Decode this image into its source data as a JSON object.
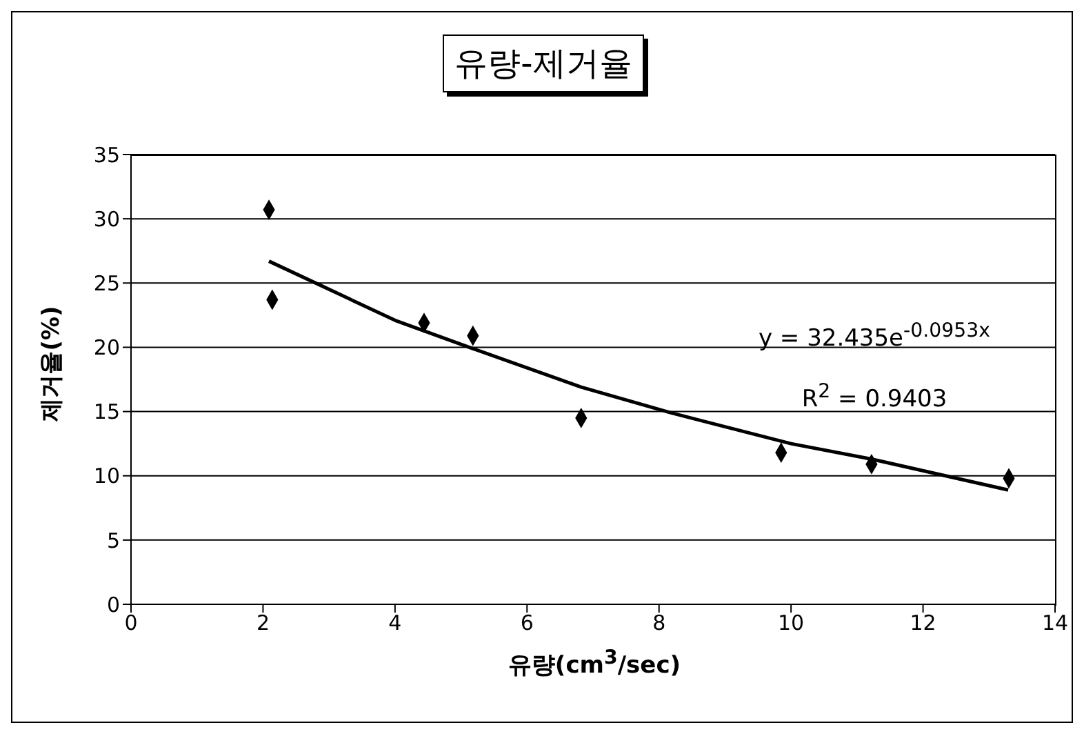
{
  "chart_data": {
    "type": "scatter",
    "title": "유량-제거율",
    "xlabel": "유량(cm$^{3}$/sec)",
    "ylabel": "제거율(%)",
    "xlim": [
      0,
      14
    ],
    "xticks": [
      0,
      2,
      4,
      6,
      8,
      10,
      12,
      14
    ],
    "ylim": [
      0,
      35
    ],
    "yticks": [
      0,
      5,
      10,
      15,
      20,
      25,
      30,
      35
    ],
    "grid": "y",
    "annotations": [
      "y = 32.435e$^{-0.0953x}$",
      "R$^{2}$ = 0.9403"
    ],
    "series": [
      {
        "type": "scatter",
        "color": "#000000",
        "marker": "diamond",
        "x": [
          2.09,
          2.14,
          4.44,
          5.18,
          6.82,
          9.85,
          11.22,
          13.3
        ],
        "values": [
          30.7,
          23.7,
          21.9,
          20.9,
          14.5,
          11.8,
          10.9,
          9.8
        ]
      },
      {
        "type": "line",
        "color": "#000000",
        "marker": "none",
        "x": [
          2.09,
          4,
          5.18,
          6.82,
          8.18,
          10,
          11.22,
          13.29
        ],
        "values": [
          26.7,
          22.1,
          19.9,
          16.9,
          14.9,
          12.5,
          11.3,
          8.9
        ]
      }
    ]
  }
}
